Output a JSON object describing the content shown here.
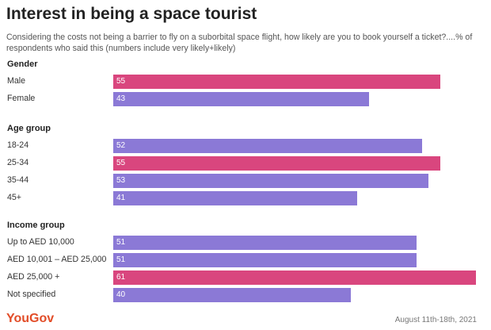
{
  "chart_data": {
    "type": "bar",
    "orientation": "horizontal",
    "title": "Interest in being a space tourist",
    "subtitle": "Considering the costs not being a barrier to fly on a suborbital space flight, how likely are you to book yourself a ticket?....% of respondents who said this (numbers include very likely+likely)",
    "xlim": [
      0,
      61
    ],
    "groups": [
      {
        "name": "Gender",
        "categories": [
          "Male",
          "Female"
        ],
        "values": [
          55,
          43
        ],
        "colors": [
          "#d9467e",
          "#8b79d6"
        ]
      },
      {
        "name": "Age group",
        "categories": [
          "18-24",
          "25-34",
          "35-44",
          "45+"
        ],
        "values": [
          52,
          55,
          53,
          41
        ],
        "colors": [
          "#8b79d6",
          "#d9467e",
          "#8b79d6",
          "#8b79d6"
        ]
      },
      {
        "name": "Income group",
        "categories": [
          "Up to AED 10,000",
          "AED 10,001 – AED 25,000",
          "AED 25,000 +",
          "Not specified"
        ],
        "values": [
          51,
          51,
          61,
          40
        ],
        "colors": [
          "#8b79d6",
          "#8b79d6",
          "#d9467e",
          "#8b79d6"
        ]
      }
    ]
  },
  "footer": {
    "brand": "YouGov",
    "brand_color": "#e24d28",
    "date": "August 11th-18th, 2021"
  }
}
